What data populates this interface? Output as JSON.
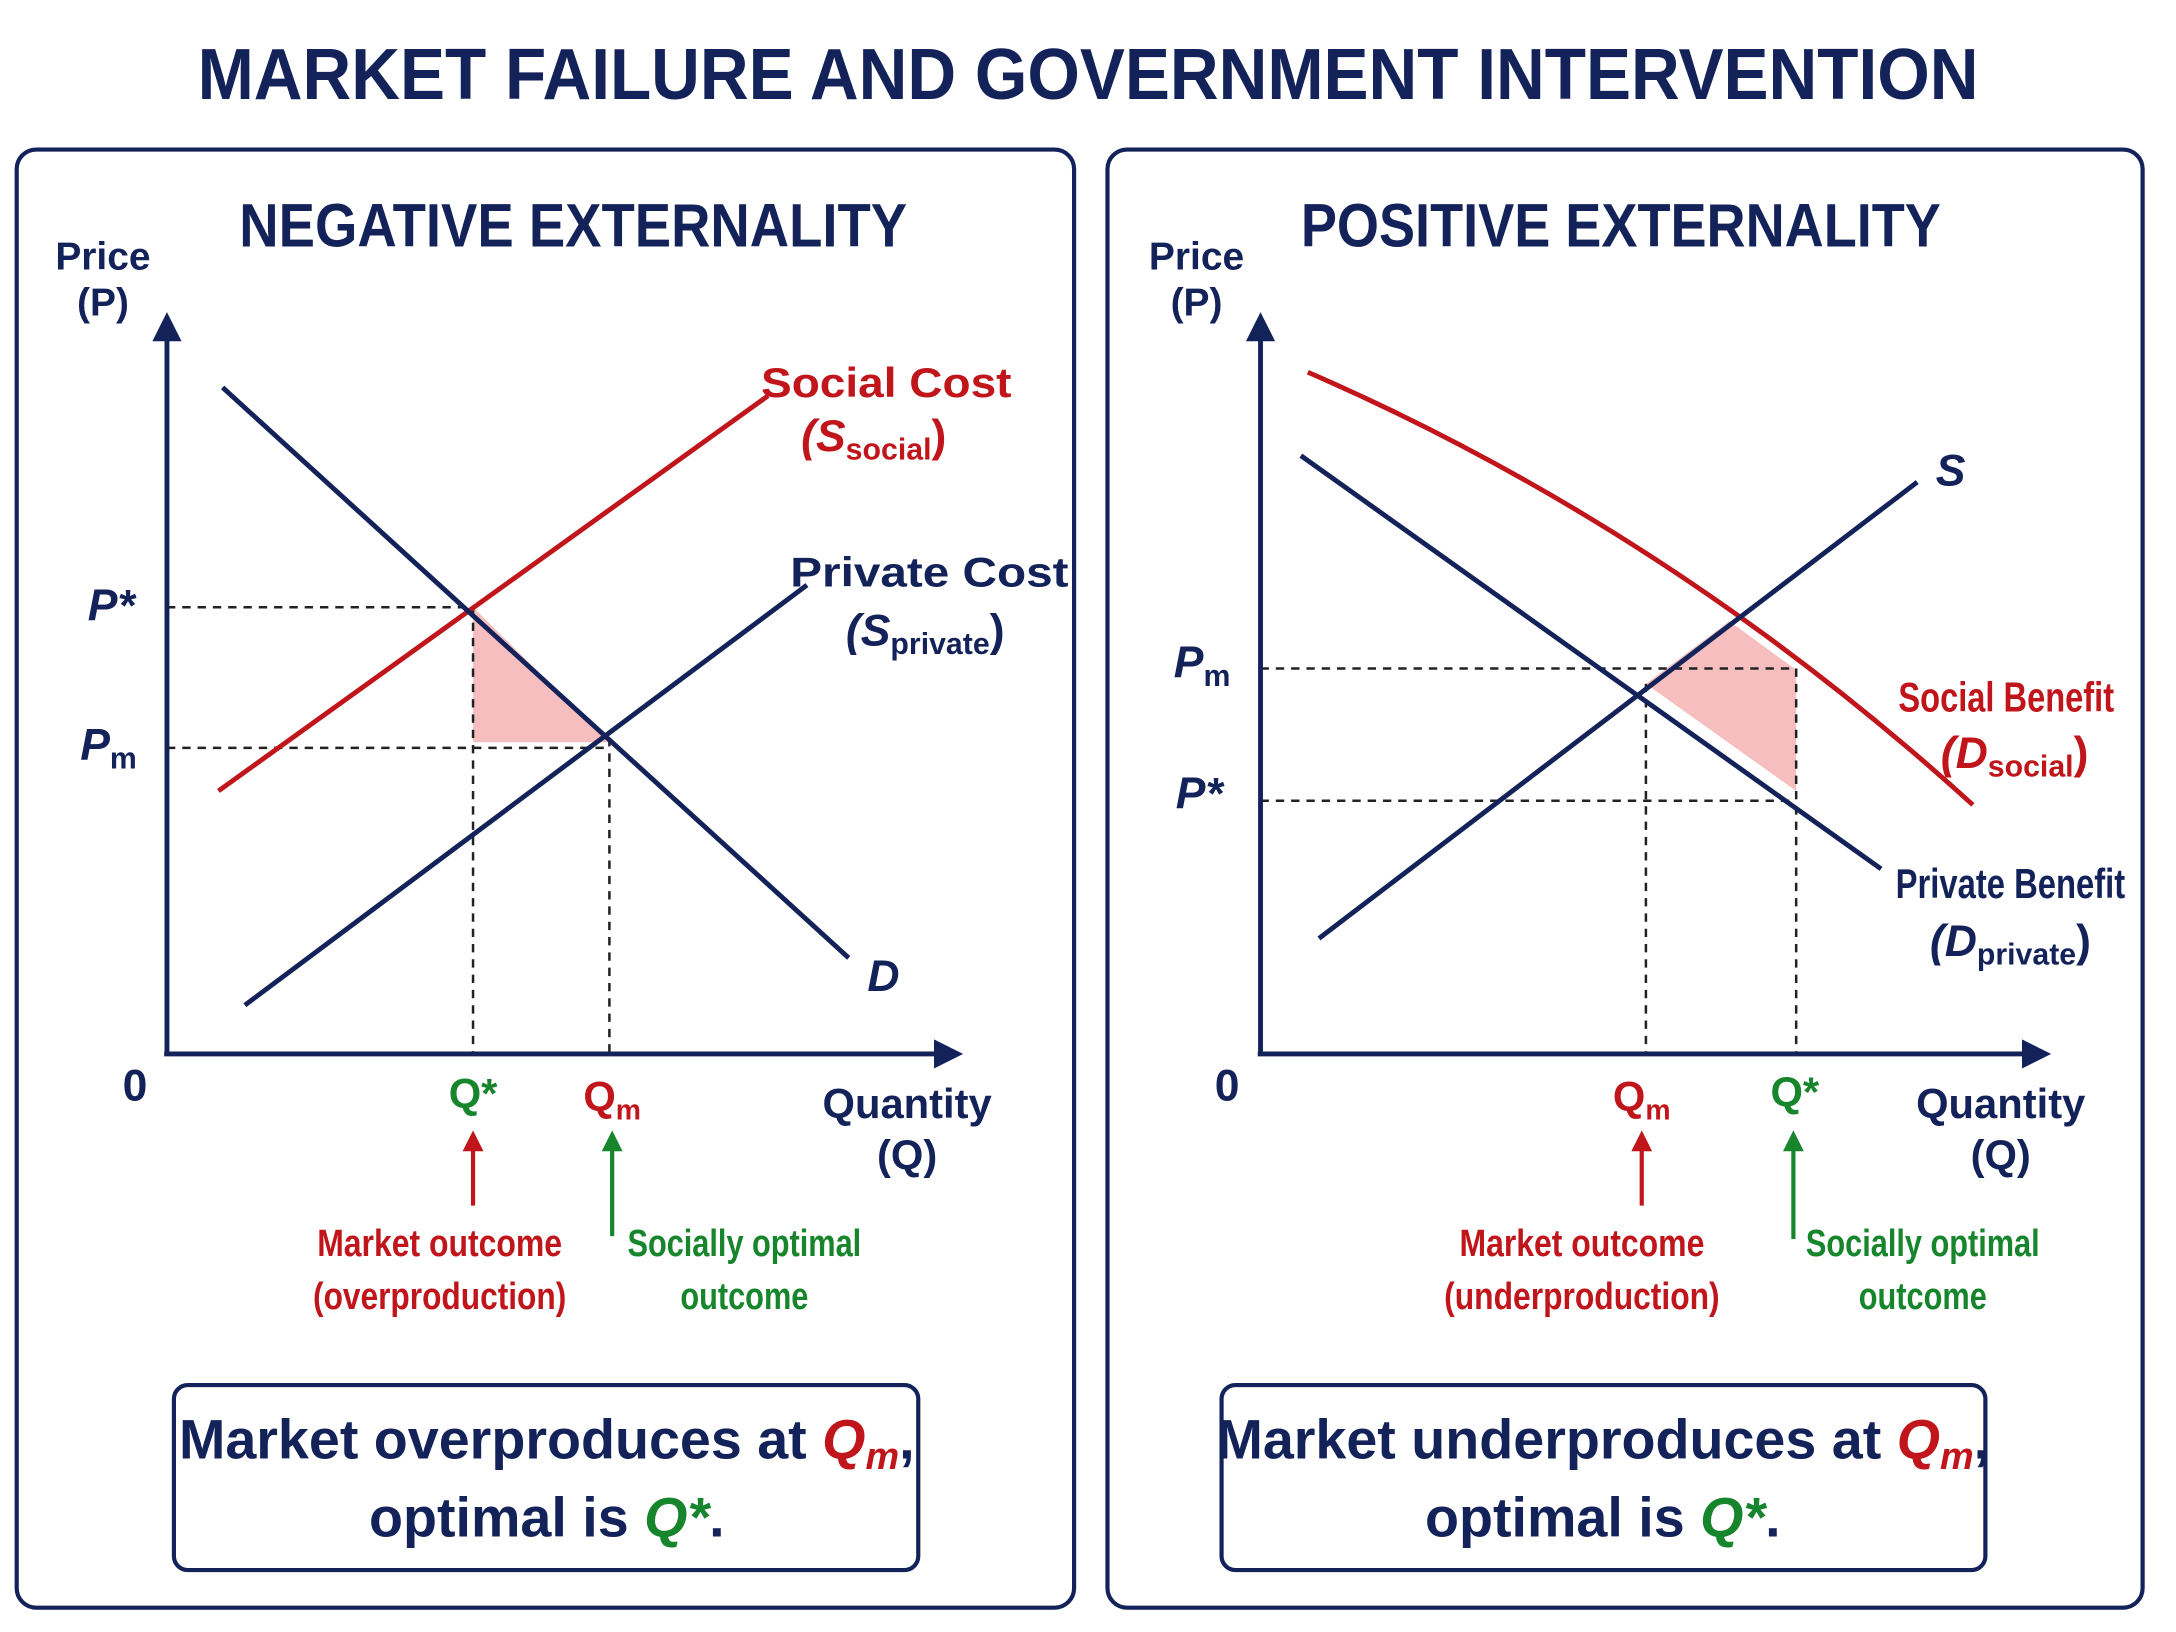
{
  "title": "MARKET FAILURE AND GOVERNMENT INTERVENTION",
  "panels": [
    {
      "title": "NEGATIVE EXTERNALITY",
      "y_axis_label": [
        "Price",
        "(P)"
      ],
      "x_axis_label": [
        "Quantity",
        "(Q)"
      ],
      "origin": "0",
      "price_labels": [
        {
          "text": "P*"
        },
        {
          "text": "P",
          "sub": "m"
        }
      ],
      "quantity_labels": [
        {
          "text": "Q*"
        },
        {
          "text": "Q",
          "sub": "m"
        }
      ],
      "curves": [
        {
          "name": "Social Cost",
          "symbol": "(S",
          "sub": "social",
          "close": ")"
        },
        {
          "name": "Private Cost",
          "symbol": "(S",
          "sub": "private",
          "close": ")"
        },
        {
          "symbol": "D"
        }
      ],
      "annotations": [
        [
          "Market outcome",
          "(overproduction)"
        ],
        [
          "Socially optimal",
          "outcome"
        ]
      ],
      "summary": [
        [
          "Market overproduces at ",
          "Q",
          "m",
          ","
        ],
        [
          "optimal is ",
          "Q*",
          "."
        ]
      ]
    },
    {
      "title": "POSITIVE EXTERNALITY",
      "y_axis_label": [
        "Price",
        "(P)"
      ],
      "x_axis_label": [
        "Quantity",
        "(Q)"
      ],
      "origin": "0",
      "price_labels": [
        {
          "text": "P",
          "sub": "m"
        },
        {
          "text": "P*"
        }
      ],
      "quantity_labels": [
        {
          "text": "Q",
          "sub": "m"
        },
        {
          "text": "Q*"
        }
      ],
      "curves": [
        {
          "name": "Social Benefit",
          "symbol": "(D",
          "sub": "social",
          "close": ")"
        },
        {
          "name": "Private Benefit",
          "symbol": "(D",
          "sub": "private",
          "close": ")"
        },
        {
          "symbol": "S"
        }
      ],
      "annotations": [
        [
          "Market outcome",
          "(underproduction)"
        ],
        [
          "Socially optimal",
          "outcome"
        ]
      ],
      "summary": [
        [
          "Market underproduces at ",
          "Q",
          "m",
          ","
        ],
        [
          "optimal is ",
          "Q*",
          "."
        ]
      ]
    }
  ]
}
